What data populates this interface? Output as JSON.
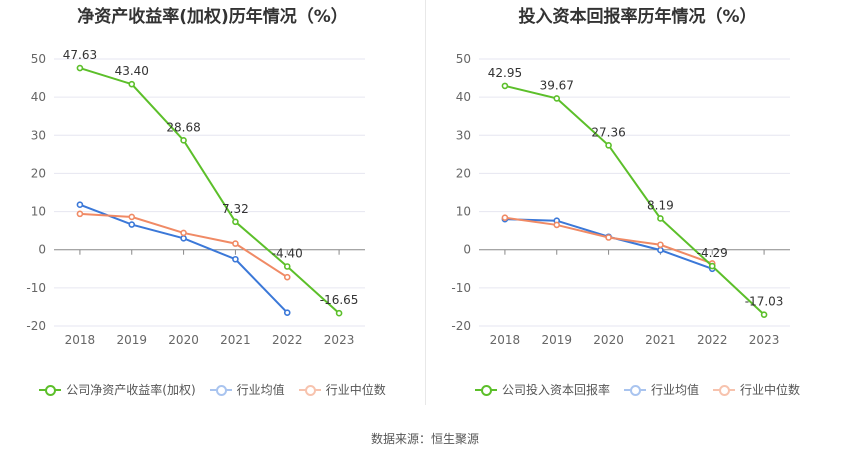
{
  "charts": [
    {
      "title": "净资产收益率(加权)历年情况（%）",
      "legend": [
        "公司净资产收益率(加权)",
        "行业均值",
        "行业中位数"
      ]
    },
    {
      "title": "投入资本回报率历年情况（%）",
      "legend": [
        "公司投入资本回报率",
        "行业均值",
        "行业中位数"
      ]
    }
  ],
  "source": "数据来源：恒生聚源",
  "colors": {
    "company": "#5cbf2a",
    "mean": "#3b78d8",
    "median": "#f08a65",
    "grid": "#e6e6f0",
    "axis": "#666666",
    "text": "#333333"
  },
  "chart_data": [
    {
      "type": "line",
      "title": "净资产收益率(加权)历年情况（%）",
      "categories": [
        "2018",
        "2019",
        "2020",
        "2021",
        "2022",
        "2023"
      ],
      "ylim": [
        -20,
        50
      ],
      "yticks": [
        -20,
        -10,
        0,
        10,
        20,
        30,
        40,
        50
      ],
      "grid": true,
      "legend_position": "bottom",
      "series": [
        {
          "name": "公司净资产收益率(加权)",
          "color": "#5cbf2a",
          "values": [
            47.63,
            43.4,
            28.68,
            7.32,
            -4.4,
            -16.65
          ],
          "labels": [
            "47.63",
            "43.40",
            "28.68",
            "7.32",
            "-4.40",
            "-16.65"
          ]
        },
        {
          "name": "行业均值",
          "color": "#3b78d8",
          "values": [
            11.8,
            6.6,
            3.0,
            -2.5,
            -16.5,
            null
          ]
        },
        {
          "name": "行业中位数",
          "color": "#f08a65",
          "values": [
            9.4,
            8.6,
            4.4,
            1.6,
            -7.2,
            null
          ]
        }
      ]
    },
    {
      "type": "line",
      "title": "投入资本回报率历年情况（%）",
      "categories": [
        "2018",
        "2019",
        "2020",
        "2021",
        "2022",
        "2023"
      ],
      "ylim": [
        -20,
        50
      ],
      "yticks": [
        -20,
        -10,
        0,
        10,
        20,
        30,
        40,
        50
      ],
      "grid": true,
      "legend_position": "bottom",
      "series": [
        {
          "name": "公司投入资本回报率",
          "color": "#5cbf2a",
          "values": [
            42.95,
            39.67,
            27.36,
            8.19,
            -4.29,
            -17.03
          ],
          "labels": [
            "42.95",
            "39.67",
            "27.36",
            "8.19",
            "-4.29",
            "-17.03"
          ]
        },
        {
          "name": "行业均值",
          "color": "#3b78d8",
          "values": [
            8.0,
            7.6,
            3.4,
            -0.1,
            -5.0,
            null
          ]
        },
        {
          "name": "行业中位数",
          "color": "#f08a65",
          "values": [
            8.4,
            6.5,
            3.2,
            1.3,
            -3.6,
            null
          ]
        }
      ]
    }
  ]
}
